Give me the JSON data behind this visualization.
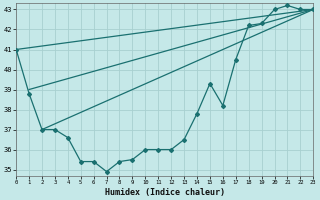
{
  "xlabel": "Humidex (Indice chaleur)",
  "background_color": "#c5e8e8",
  "grid_color": "#a8d0d0",
  "line_color": "#1a7070",
  "x_data": [
    0,
    1,
    2,
    3,
    4,
    5,
    6,
    7,
    8,
    9,
    10,
    11,
    12,
    13,
    14,
    15,
    16,
    17,
    18,
    19,
    20,
    21,
    22,
    23
  ],
  "y_main": [
    41.0,
    38.8,
    37.0,
    37.0,
    36.6,
    35.4,
    35.4,
    34.9,
    35.4,
    35.5,
    36.0,
    36.0,
    36.0,
    36.5,
    37.8,
    39.3,
    38.2,
    40.5,
    42.2,
    42.3,
    43.0,
    43.2,
    43.0,
    43.0
  ],
  "trend1_x": [
    0,
    23
  ],
  "trend1_y": [
    41.0,
    43.0
  ],
  "trend2_x": [
    1,
    23
  ],
  "trend2_y": [
    39.0,
    43.0
  ],
  "trend3_x": [
    2,
    23
  ],
  "trend3_y": [
    37.0,
    43.0
  ],
  "xlim": [
    0,
    23
  ],
  "ylim": [
    34.7,
    43.3
  ],
  "yticks": [
    35,
    36,
    37,
    38,
    39,
    40,
    41,
    42,
    43
  ],
  "xticks": [
    0,
    1,
    2,
    3,
    4,
    5,
    6,
    7,
    8,
    9,
    10,
    11,
    12,
    13,
    14,
    15,
    16,
    17,
    18,
    19,
    20,
    21,
    22,
    23
  ]
}
